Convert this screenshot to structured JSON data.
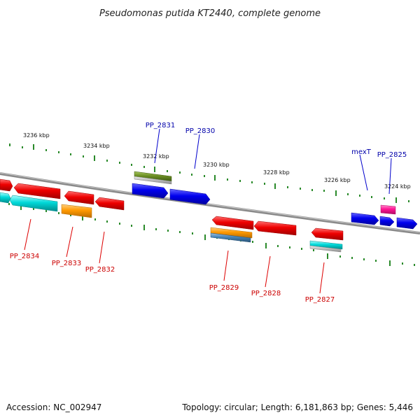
{
  "title": "Pseudomonas putida KT2440, complete genome",
  "accession": "Accession: NC_002947",
  "topology": "Topology: circular; Length: 6,181,863 bp; Genes: 5,446",
  "scale_labels": [
    "3236 kbp",
    "3234 kbp",
    "3232 kbp",
    "3230 kbp",
    "3228 kbp",
    "3226 kbp",
    "3224 kbp"
  ],
  "gene_labels": [
    "PP_2831",
    "PP_2830",
    "mexT",
    "PP_2825",
    "PP_2834",
    "PP_2833",
    "PP_2832",
    "PP_2829",
    "PP_2828",
    "PP_2827"
  ],
  "colors": {
    "backbone": "#8a8a8a",
    "ticks": "#2a8a2a",
    "label_blue": "#0000aa",
    "label_red": "#cc0000",
    "gene_red": "#ee0000",
    "gene_blue": "#0000ee",
    "gene_cyan": "#00d8d8",
    "gene_orange": "#ff9900",
    "gene_olive": "#6b8e23",
    "gene_silver": "#c0c0c0",
    "gene_steel": "#4682b4",
    "gene_pink": "#ff1493"
  }
}
